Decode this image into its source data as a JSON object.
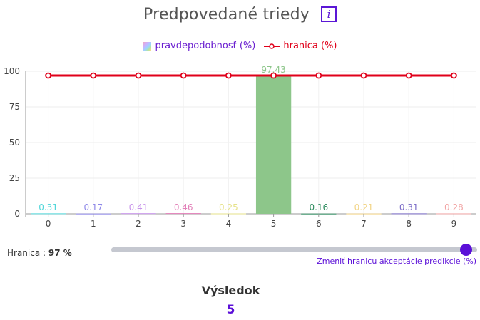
{
  "header": {
    "title": "Predpovedané triedy",
    "info_icon": "info-icon",
    "info_glyph": "i"
  },
  "legend": {
    "probability_label": "pravdepodobnosť (%)",
    "threshold_label": "hranica (%)"
  },
  "chart_data": {
    "type": "bar",
    "categories": [
      "0",
      "1",
      "2",
      "3",
      "4",
      "5",
      "6",
      "7",
      "8",
      "9"
    ],
    "series": [
      {
        "name": "pravdepodobnosť (%)",
        "type": "bar",
        "values": [
          0.31,
          0.17,
          0.41,
          0.46,
          0.25,
          97.43,
          0.16,
          0.21,
          0.31,
          0.28
        ],
        "value_labels": [
          "0.31",
          "0.17",
          "0.41",
          "0.46",
          "0.25",
          "97.43",
          "0.16",
          "0.21",
          "0.31",
          "0.28"
        ],
        "colors": [
          "#4fd6d9",
          "#8d87e8",
          "#c792ea",
          "#e27fb8",
          "#e6e28a",
          "#8dc68a",
          "#2e8b5e",
          "#f2d486",
          "#7b6cc7",
          "#f2a6a6"
        ]
      },
      {
        "name": "hranica (%)",
        "type": "line",
        "values": [
          97,
          97,
          97,
          97,
          97,
          97,
          97,
          97,
          97,
          97
        ],
        "color": "#e0001a"
      }
    ],
    "yticks": [
      "0",
      "25",
      "50",
      "75",
      "100"
    ],
    "ylim": [
      0,
      100
    ],
    "grid": true
  },
  "threshold": {
    "label": "Hranica :",
    "value_text": "97 %",
    "value": 97,
    "min": 0,
    "max": 100,
    "hint": "Zmeniť hranicu akceptácie predikcie (%)"
  },
  "result": {
    "title": "Výsledok",
    "value": "5"
  }
}
